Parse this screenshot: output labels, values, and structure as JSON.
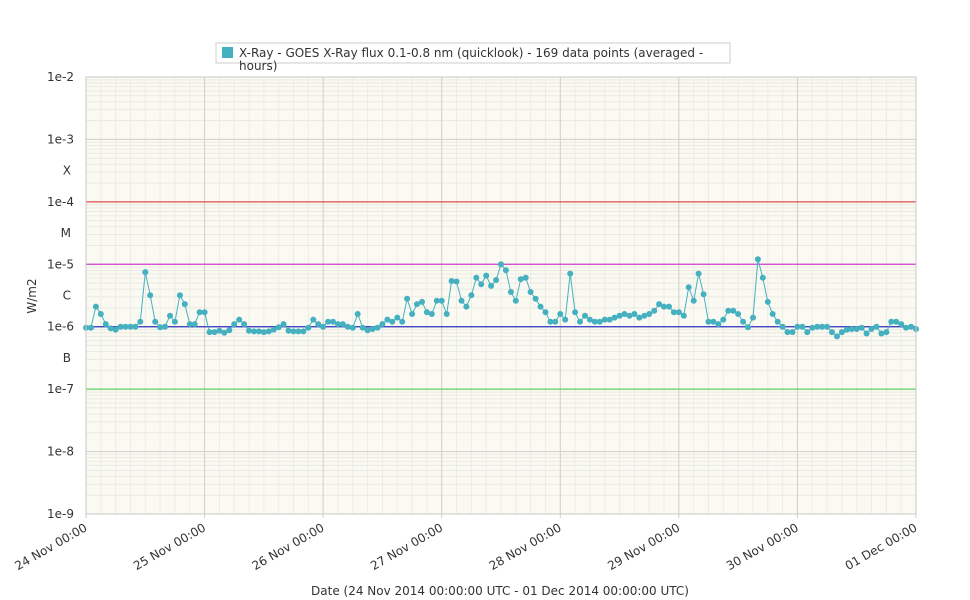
{
  "chart_data": {
    "type": "line",
    "legend": {
      "placement": "top-center",
      "label_line1": "X-Ray - GOES X-Ray flux 0.1-0.8 nm (quicklook) - 169 data points (averaged -",
      "label_line2": "hours)"
    },
    "xlabel": "Date (24 Nov 2014 00:00:00 UTC - 01 Dec 2014 00:00:00 UTC)",
    "ylabel": "W/m2",
    "y_scale": "log",
    "ylim": [
      1e-09,
      0.01
    ],
    "xlim": [
      "2014-11-24 00:00",
      "2014-12-01 00:00"
    ],
    "x_ticks": [
      "24 Nov 00:00",
      "25 Nov 00:00",
      "26 Nov 00:00",
      "27 Nov 00:00",
      "28 Nov 00:00",
      "29 Nov 00:00",
      "30 Nov 00:00",
      "01 Dec 00:00"
    ],
    "y_ticks": [
      {
        "label": "1e-2",
        "value": 0.01
      },
      {
        "label": "1e-3",
        "value": 0.001
      },
      {
        "label": "1e-4",
        "value": 0.0001
      },
      {
        "label": "1e-5",
        "value": 1e-05
      },
      {
        "label": "1e-6",
        "value": 1e-06
      },
      {
        "label": "1e-7",
        "value": 1e-07
      },
      {
        "label": "1e-8",
        "value": 1e-08
      },
      {
        "label": "1e-9",
        "value": 1e-09
      }
    ],
    "flare_classes": [
      {
        "label": "X",
        "value": 0.000316
      },
      {
        "label": "M",
        "value": 3.16e-05
      },
      {
        "label": "C",
        "value": 3.16e-06
      },
      {
        "label": "B",
        "value": 3.16e-07
      }
    ],
    "thresholds": [
      {
        "value": 0.0001,
        "color": "#e05050"
      },
      {
        "value": 1e-05,
        "color": "#d040d0"
      },
      {
        "value": 1e-06,
        "color": "#3030c0"
      },
      {
        "value": 1e-07,
        "color": "#60d060"
      }
    ],
    "grid": true,
    "series": [
      {
        "name": "X-Ray - GOES X-Ray flux 0.1-0.8 nm (quicklook)",
        "color": "#45b0c0",
        "x_start": "2014-11-24 00:00",
        "x_step_hours": 1,
        "values": [
          9.6e-07,
          9.6e-07,
          2.1e-06,
          1.6e-06,
          1.1e-06,
          9.4e-07,
          9e-07,
          1e-06,
          1e-06,
          1e-06,
          1e-06,
          1.2e-06,
          7.5e-06,
          3.2e-06,
          1.2e-06,
          9.8e-07,
          1e-06,
          1.5e-06,
          1.2e-06,
          3.2e-06,
          2.3e-06,
          1.1e-06,
          1.1e-06,
          1.7e-06,
          1.7e-06,
          8.2e-07,
          8.2e-07,
          8.6e-07,
          8e-07,
          8.8e-07,
          1.1e-06,
          1.3e-06,
          1.1e-06,
          8.6e-07,
          8.4e-07,
          8.4e-07,
          8.2e-07,
          8.4e-07,
          9e-07,
          9.8e-07,
          1.1e-06,
          8.6e-07,
          8.4e-07,
          8.4e-07,
          8.4e-07,
          9.6e-07,
          1.3e-06,
          1.1e-06,
          1e-06,
          1.2e-06,
          1.2e-06,
          1.1e-06,
          1.1e-06,
          1e-06,
          9.6e-07,
          1.6e-06,
          9.6e-07,
          8.8e-07,
          9.2e-07,
          9.6e-07,
          1.1e-06,
          1.3e-06,
          1.2e-06,
          1.4e-06,
          1.2e-06,
          2.8e-06,
          1.6e-06,
          2.3e-06,
          2.5e-06,
          1.7e-06,
          1.6e-06,
          2.6e-06,
          2.6e-06,
          1.6e-06,
          5.4e-06,
          5.3e-06,
          2.6e-06,
          2.1e-06,
          3.2e-06,
          6.1e-06,
          4.8e-06,
          6.6e-06,
          4.5e-06,
          5.6e-06,
          1e-05,
          8e-06,
          3.6e-06,
          2.6e-06,
          5.8e-06,
          6.1e-06,
          3.6e-06,
          2.8e-06,
          2.1e-06,
          1.7e-06,
          1.2e-06,
          1.2e-06,
          1.6e-06,
          1.3e-06,
          7.1e-06,
          1.7e-06,
          1.2e-06,
          1.5e-06,
          1.3e-06,
          1.2e-06,
          1.2e-06,
          1.3e-06,
          1.3e-06,
          1.4e-06,
          1.5e-06,
          1.6e-06,
          1.5e-06,
          1.6e-06,
          1.4e-06,
          1.5e-06,
          1.6e-06,
          1.8e-06,
          2.3e-06,
          2.1e-06,
          2.1e-06,
          1.7e-06,
          1.7e-06,
          1.5e-06,
          4.3e-06,
          2.6e-06,
          7.1e-06,
          3.3e-06,
          1.2e-06,
          1.2e-06,
          1.1e-06,
          1.3e-06,
          1.8e-06,
          1.8e-06,
          1.6e-06,
          1.2e-06,
          9.8e-07,
          1.4e-06,
          1.2e-05,
          6.1e-06,
          2.5e-06,
          1.6e-06,
          1.2e-06,
          1e-06,
          8.2e-07,
          8.2e-07,
          1e-06,
          1e-06,
          8.2e-07,
          9.6e-07,
          1e-06,
          1e-06,
          1e-06,
          8.2e-07,
          7e-07,
          8.2e-07,
          9e-07,
          9.2e-07,
          9.2e-07,
          9.6e-07,
          7.8e-07,
          9.2e-07,
          1e-06,
          7.8e-07,
          8.2e-07,
          1.2e-06,
          1.2e-06,
          1.1e-06,
          9.6e-07,
          1e-06,
          9.2e-07
        ]
      }
    ]
  }
}
